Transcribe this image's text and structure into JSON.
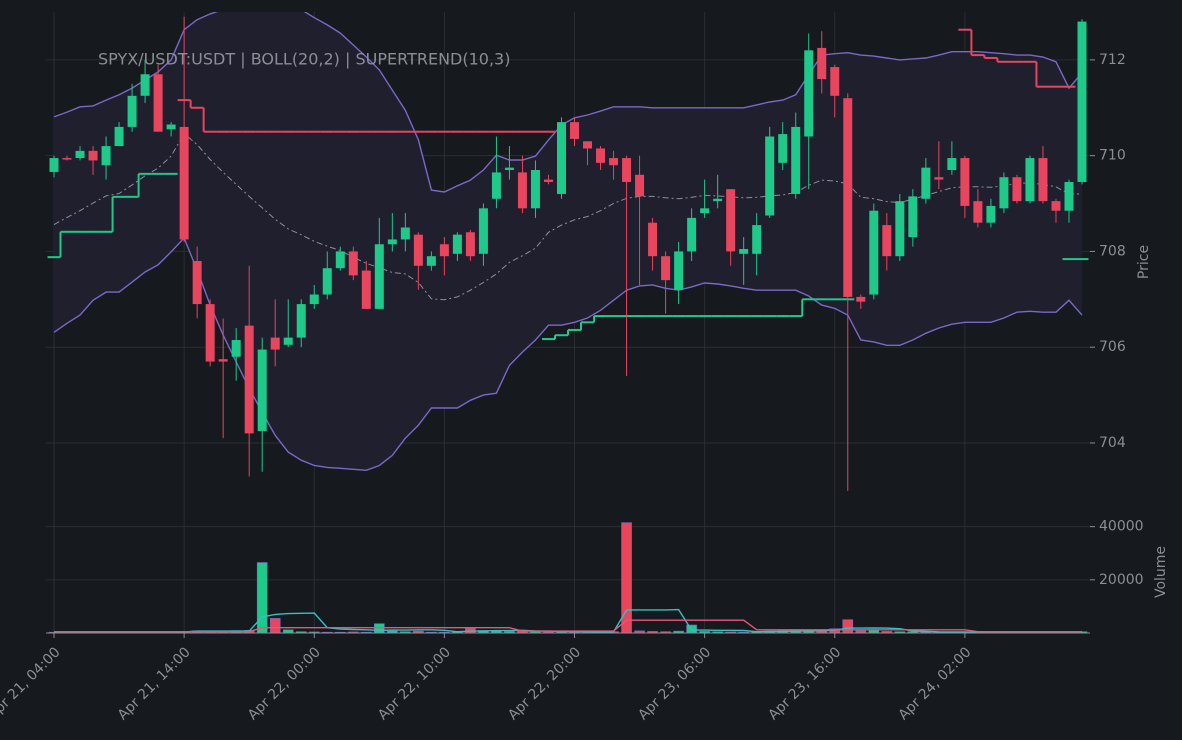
{
  "chart_data": [
    {
      "type": "candlestick",
      "title": "SPYX/USDT:USDT | BOLL(20,2) | SUPERTREND(10,3)",
      "y_label": "Price",
      "categories": [
        "Apr 21, 04:00",
        null,
        null,
        null,
        null,
        null,
        null,
        null,
        null,
        null,
        "Apr 21, 14:00",
        null,
        null,
        null,
        null,
        null,
        null,
        null,
        null,
        null,
        "Apr 22, 00:00",
        null,
        null,
        null,
        null,
        null,
        null,
        null,
        null,
        null,
        "Apr 22, 10:00",
        null,
        null,
        null,
        null,
        null,
        null,
        null,
        null,
        null,
        "Apr 22, 20:00",
        null,
        null,
        null,
        null,
        null,
        null,
        null,
        null,
        null,
        "Apr 23, 06:00",
        null,
        null,
        null,
        null,
        null,
        null,
        null,
        null,
        null,
        "Apr 23, 16:00",
        null,
        null,
        null,
        null,
        null,
        null,
        null,
        null,
        null,
        "Apr 24, 02:00",
        null,
        null,
        null,
        null,
        null,
        null,
        null,
        null,
        null
      ],
      "open": [
        709.66,
        709.95,
        709.95,
        710.1,
        709.8,
        710.2,
        710.6,
        711.25,
        711.7,
        710.55,
        710.6,
        707.8,
        706.9,
        705.75,
        705.8,
        706.45,
        704.25,
        706.2,
        706.05,
        706.2,
        706.9,
        707.1,
        707.65,
        708.0,
        707.6,
        706.8,
        708.15,
        708.25,
        708.35,
        707.7,
        708.15,
        707.95,
        708.4,
        707.95,
        709.1,
        709.7,
        709.65,
        708.9,
        709.5,
        709.2,
        710.7,
        710.3,
        710.15,
        709.95,
        709.95,
        709.6,
        708.6,
        707.9,
        707.2,
        708.0,
        708.8,
        709.05,
        709.3,
        707.95,
        707.95,
        708.75,
        709.85,
        709.2,
        710.4,
        712.25,
        711.85,
        711.2,
        707.05,
        707.1,
        708.55,
        707.9,
        708.3,
        709.1,
        709.55,
        709.7,
        709.95,
        709.05,
        708.6,
        708.9,
        709.55,
        709.05,
        709.95,
        709.05,
        708.85,
        709.45
      ],
      "high": [
        710.0,
        710.0,
        710.2,
        710.2,
        710.4,
        710.7,
        711.5,
        712.0,
        711.9,
        710.7,
        712.9,
        708.1,
        707.0,
        706.6,
        706.4,
        707.7,
        706.2,
        707.0,
        707.0,
        707.0,
        707.3,
        708.0,
        708.1,
        708.1,
        707.8,
        708.7,
        708.8,
        708.8,
        708.4,
        708.0,
        708.3,
        708.4,
        708.45,
        709.0,
        710.4,
        710.2,
        710.0,
        709.9,
        709.6,
        710.8,
        710.8,
        710.3,
        710.2,
        710.1,
        710.0,
        710.0,
        708.7,
        708.0,
        708.2,
        708.9,
        709.5,
        709.6,
        709.3,
        708.3,
        708.8,
        710.6,
        710.7,
        710.9,
        712.55,
        712.6,
        711.9,
        711.3,
        707.1,
        709.0,
        708.8,
        709.2,
        709.3,
        709.95,
        710.3,
        710.3,
        710.0,
        709.3,
        709.1,
        709.65,
        709.6,
        710.0,
        710.2,
        709.1,
        709.5,
        712.85
      ],
      "low": [
        709.55,
        709.9,
        709.9,
        709.6,
        709.5,
        710.2,
        710.5,
        711.1,
        710.5,
        710.4,
        708.2,
        706.6,
        705.6,
        704.1,
        705.3,
        703.3,
        703.4,
        705.6,
        706.0,
        706.0,
        706.8,
        707.0,
        707.6,
        707.4,
        706.8,
        706.8,
        708.0,
        708.0,
        707.2,
        707.6,
        707.5,
        707.8,
        707.8,
        707.7,
        708.9,
        709.5,
        708.8,
        708.7,
        709.4,
        709.1,
        710.2,
        709.8,
        709.7,
        709.5,
        705.4,
        707.3,
        707.6,
        706.7,
        706.9,
        707.8,
        708.7,
        708.9,
        707.7,
        707.3,
        707.5,
        708.7,
        709.7,
        709.1,
        709.3,
        711.3,
        710.8,
        703.0,
        706.8,
        707.0,
        707.6,
        707.8,
        708.1,
        709.0,
        709.3,
        709.6,
        708.7,
        708.5,
        708.5,
        708.8,
        709.0,
        709.0,
        709.0,
        708.6,
        708.6,
        709.4
      ],
      "close": [
        709.95,
        709.93,
        710.1,
        709.9,
        710.2,
        710.6,
        711.25,
        711.7,
        710.5,
        710.65,
        708.25,
        706.9,
        705.7,
        705.7,
        706.15,
        704.2,
        705.95,
        705.95,
        706.2,
        706.9,
        707.1,
        707.65,
        708.0,
        707.5,
        706.8,
        708.15,
        708.25,
        708.5,
        707.7,
        707.9,
        707.9,
        708.35,
        707.9,
        708.9,
        709.65,
        709.75,
        708.9,
        709.7,
        709.45,
        710.7,
        710.35,
        710.15,
        709.85,
        709.8,
        709.45,
        709.15,
        707.9,
        707.4,
        708.0,
        708.7,
        708.9,
        709.1,
        708.0,
        708.05,
        708.55,
        710.4,
        710.45,
        710.6,
        712.2,
        711.6,
        711.25,
        707.05,
        706.95,
        708.85,
        707.9,
        709.05,
        709.15,
        709.75,
        709.5,
        709.95,
        708.95,
        708.6,
        708.95,
        709.55,
        709.05,
        709.95,
        709.05,
        708.85,
        709.45,
        712.8
      ],
      "up_color": "#1fc98a",
      "down_color": "#e8455f",
      "band_color": "#1f1f2e",
      "ylim": [
        702.6,
        713.0
      ],
      "yticks": [
        704,
        706,
        708,
        710,
        712
      ],
      "grid": true,
      "series": [
        {
          "color": "#7a68c8",
          "values": [
            710.81,
            710.91,
            711.02,
            711.04,
            711.16,
            711.27,
            711.41,
            711.58,
            711.75,
            712.0,
            712.63,
            712.84,
            712.96,
            713.05,
            713.11,
            713.15,
            713.17,
            713.17,
            713.13,
            713.05,
            712.88,
            712.73,
            712.56,
            712.31,
            712.06,
            711.79,
            711.37,
            710.95,
            710.33,
            709.28,
            709.24,
            709.37,
            709.49,
            709.7,
            710.01,
            709.91,
            709.91,
            709.99,
            710.33,
            710.64,
            710.79,
            710.85,
            710.93,
            711.02,
            711.02,
            711.02,
            711.0,
            711.0,
            711.0,
            711.0,
            711.0,
            711.0,
            711.0,
            711.0,
            711.06,
            711.12,
            711.16,
            711.27,
            711.69,
            712.1,
            712.13,
            712.15,
            712.1,
            712.08,
            712.04,
            712.0,
            712.02,
            712.04,
            712.1,
            712.17,
            712.17,
            712.17,
            712.15,
            712.13,
            712.1,
            712.1,
            712.06,
            711.96,
            711.41,
            711.73
          ]
        },
        {
          "color": "#8c9096",
          "dash": true,
          "values": [
            708.56,
            708.71,
            708.85,
            709.01,
            709.16,
            709.21,
            709.39,
            709.58,
            709.74,
            709.99,
            710.46,
            710.23,
            709.92,
            709.65,
            709.4,
            709.15,
            708.91,
            708.67,
            708.47,
            708.35,
            708.21,
            708.11,
            708.02,
            707.88,
            707.75,
            707.66,
            707.56,
            707.53,
            707.35,
            707.01,
            706.99,
            707.05,
            707.19,
            707.35,
            707.53,
            707.77,
            707.91,
            708.07,
            708.4,
            708.55,
            708.66,
            708.73,
            708.85,
            709.0,
            709.11,
            709.15,
            709.15,
            709.12,
            709.1,
            709.13,
            709.17,
            709.16,
            709.14,
            709.12,
            709.13,
            709.16,
            709.18,
            709.23,
            709.38,
            709.49,
            709.47,
            709.41,
            709.13,
            709.1,
            709.04,
            709.02,
            709.09,
            709.17,
            709.25,
            709.33,
            709.35,
            709.35,
            709.34,
            709.37,
            709.42,
            709.43,
            709.4,
            709.35,
            709.2,
            709.2
          ]
        },
        {
          "color": "#7a68c8",
          "values": [
            706.31,
            706.5,
            706.67,
            706.98,
            707.15,
            707.15,
            707.36,
            707.57,
            707.72,
            707.99,
            708.28,
            707.61,
            706.88,
            706.25,
            705.69,
            705.14,
            704.64,
            704.16,
            703.81,
            703.64,
            703.53,
            703.49,
            703.47,
            703.45,
            703.43,
            703.53,
            703.74,
            704.1,
            704.37,
            704.73,
            704.73,
            704.73,
            704.89,
            705.0,
            705.04,
            705.62,
            705.9,
            706.15,
            706.46,
            706.46,
            706.52,
            706.61,
            706.77,
            706.98,
            707.19,
            707.28,
            707.3,
            707.23,
            707.19,
            707.26,
            707.34,
            707.32,
            707.28,
            707.23,
            707.19,
            707.19,
            707.19,
            707.19,
            707.07,
            706.88,
            706.81,
            706.67,
            706.15,
            706.11,
            706.04,
            706.04,
            706.15,
            706.29,
            706.4,
            706.48,
            706.52,
            706.52,
            706.52,
            706.61,
            706.73,
            706.75,
            706.73,
            706.73,
            706.98,
            706.67
          ]
        },
        {
          "color": "#1fc98a",
          "step": true,
          "values": [
            707.88,
            708.41,
            708.41,
            708.41,
            708.41,
            709.14,
            709.14,
            709.62,
            709.62,
            709.62,
            null,
            null,
            null,
            null,
            null,
            null,
            null,
            null,
            null,
            null,
            null,
            null,
            null,
            null,
            null,
            null,
            null,
            null,
            null,
            null,
            null,
            null,
            null,
            null,
            null,
            null,
            null,
            null,
            706.17,
            706.25,
            706.36,
            706.52,
            706.65,
            706.65,
            706.65,
            706.65,
            706.65,
            706.65,
            706.65,
            706.65,
            706.65,
            706.65,
            706.65,
            706.65,
            706.65,
            706.65,
            706.65,
            706.65,
            707.0,
            707.0,
            707.0,
            707.0,
            null,
            null,
            null,
            null,
            null,
            null,
            null,
            null,
            null,
            null,
            null,
            null,
            null,
            null,
            null,
            null,
            707.84,
            707.84
          ]
        },
        {
          "color": "#e8455f",
          "step": true,
          "values": [
            null,
            null,
            null,
            null,
            null,
            null,
            null,
            null,
            null,
            null,
            711.16,
            711.0,
            710.5,
            710.5,
            710.5,
            710.5,
            710.5,
            710.5,
            710.5,
            710.5,
            710.5,
            710.5,
            710.5,
            710.5,
            710.5,
            710.5,
            710.5,
            710.5,
            710.5,
            710.5,
            710.5,
            710.5,
            710.5,
            710.5,
            710.5,
            710.5,
            710.5,
            710.5,
            710.5,
            null,
            null,
            null,
            null,
            null,
            null,
            null,
            null,
            null,
            null,
            null,
            null,
            null,
            null,
            null,
            null,
            null,
            null,
            null,
            null,
            null,
            null,
            null,
            null,
            null,
            null,
            null,
            null,
            null,
            null,
            null,
            712.63,
            712.1,
            712.04,
            711.96,
            711.96,
            711.96,
            711.44,
            711.44,
            711.44,
            null
          ]
        }
      ]
    },
    {
      "type": "bar",
      "y_label": "Volume",
      "values": [
        300,
        200,
        200,
        300,
        200,
        200,
        300,
        200,
        200,
        300,
        500,
        800,
        600,
        700,
        900,
        1000,
        26500,
        5500,
        1200,
        500,
        400,
        300,
        300,
        400,
        300,
        3500,
        800,
        500,
        700,
        300,
        300,
        500,
        1800,
        900,
        800,
        600,
        900,
        600,
        400,
        500,
        400,
        300,
        300,
        500,
        41500,
        800,
        600,
        500,
        700,
        3000,
        600,
        500,
        400,
        300,
        600,
        700,
        800,
        700,
        900,
        1000,
        1600,
        5000,
        800,
        1200,
        600,
        500,
        500,
        400,
        300,
        300,
        300,
        200,
        200,
        200,
        200,
        200,
        300,
        200,
        200,
        500
      ],
      "ylim": [
        0,
        44000
      ],
      "yticks": [
        20000,
        40000
      ],
      "grid": true,
      "series": [
        {
          "color": "#2ec4c4",
          "values": [
            300,
            300,
            300,
            300,
            300,
            300,
            300,
            300,
            300,
            300,
            400,
            700,
            700,
            700,
            700,
            700,
            6000,
            7000,
            7300,
            7400,
            7500,
            2000,
            1500,
            1300,
            1200,
            1000,
            1100,
            1100,
            1200,
            1200,
            1000,
            500,
            700,
            800,
            900,
            900,
            1000,
            800,
            700,
            600,
            560,
            500,
            400,
            400,
            8600,
            8700,
            8700,
            8700,
            8800,
            1100,
            1100,
            1000,
            1000,
            950,
            500,
            560,
            620,
            700,
            740,
            820,
            1000,
            1840,
            1860,
            1920,
            1840,
            1620,
            760,
            640,
            460,
            400,
            360,
            320,
            280,
            240,
            220,
            200,
            220,
            220,
            220,
            280
          ]
        },
        {
          "color": "#e8557a",
          "values": [
            500,
            500,
            500,
            500,
            500,
            500,
            500,
            500,
            500,
            500,
            500,
            500,
            500,
            500,
            500,
            500,
            2000,
            2000,
            2000,
            2000,
            2000,
            2000,
            2000,
            2000,
            2000,
            2000,
            2000,
            2000,
            2000,
            2000,
            2000,
            2000,
            2000,
            2000,
            2000,
            2000,
            700,
            700,
            700,
            700,
            700,
            700,
            700,
            700,
            4800,
            4800,
            4800,
            4800,
            4800,
            4800,
            4800,
            4800,
            4800,
            4800,
            1200,
            1200,
            1200,
            1200,
            1200,
            1200,
            1200,
            1200,
            1200,
            1200,
            1200,
            1200,
            1200,
            1200,
            1200,
            1200,
            1200,
            500,
            500,
            500,
            500,
            500,
            500,
            500,
            500,
            500
          ]
        }
      ]
    }
  ]
}
